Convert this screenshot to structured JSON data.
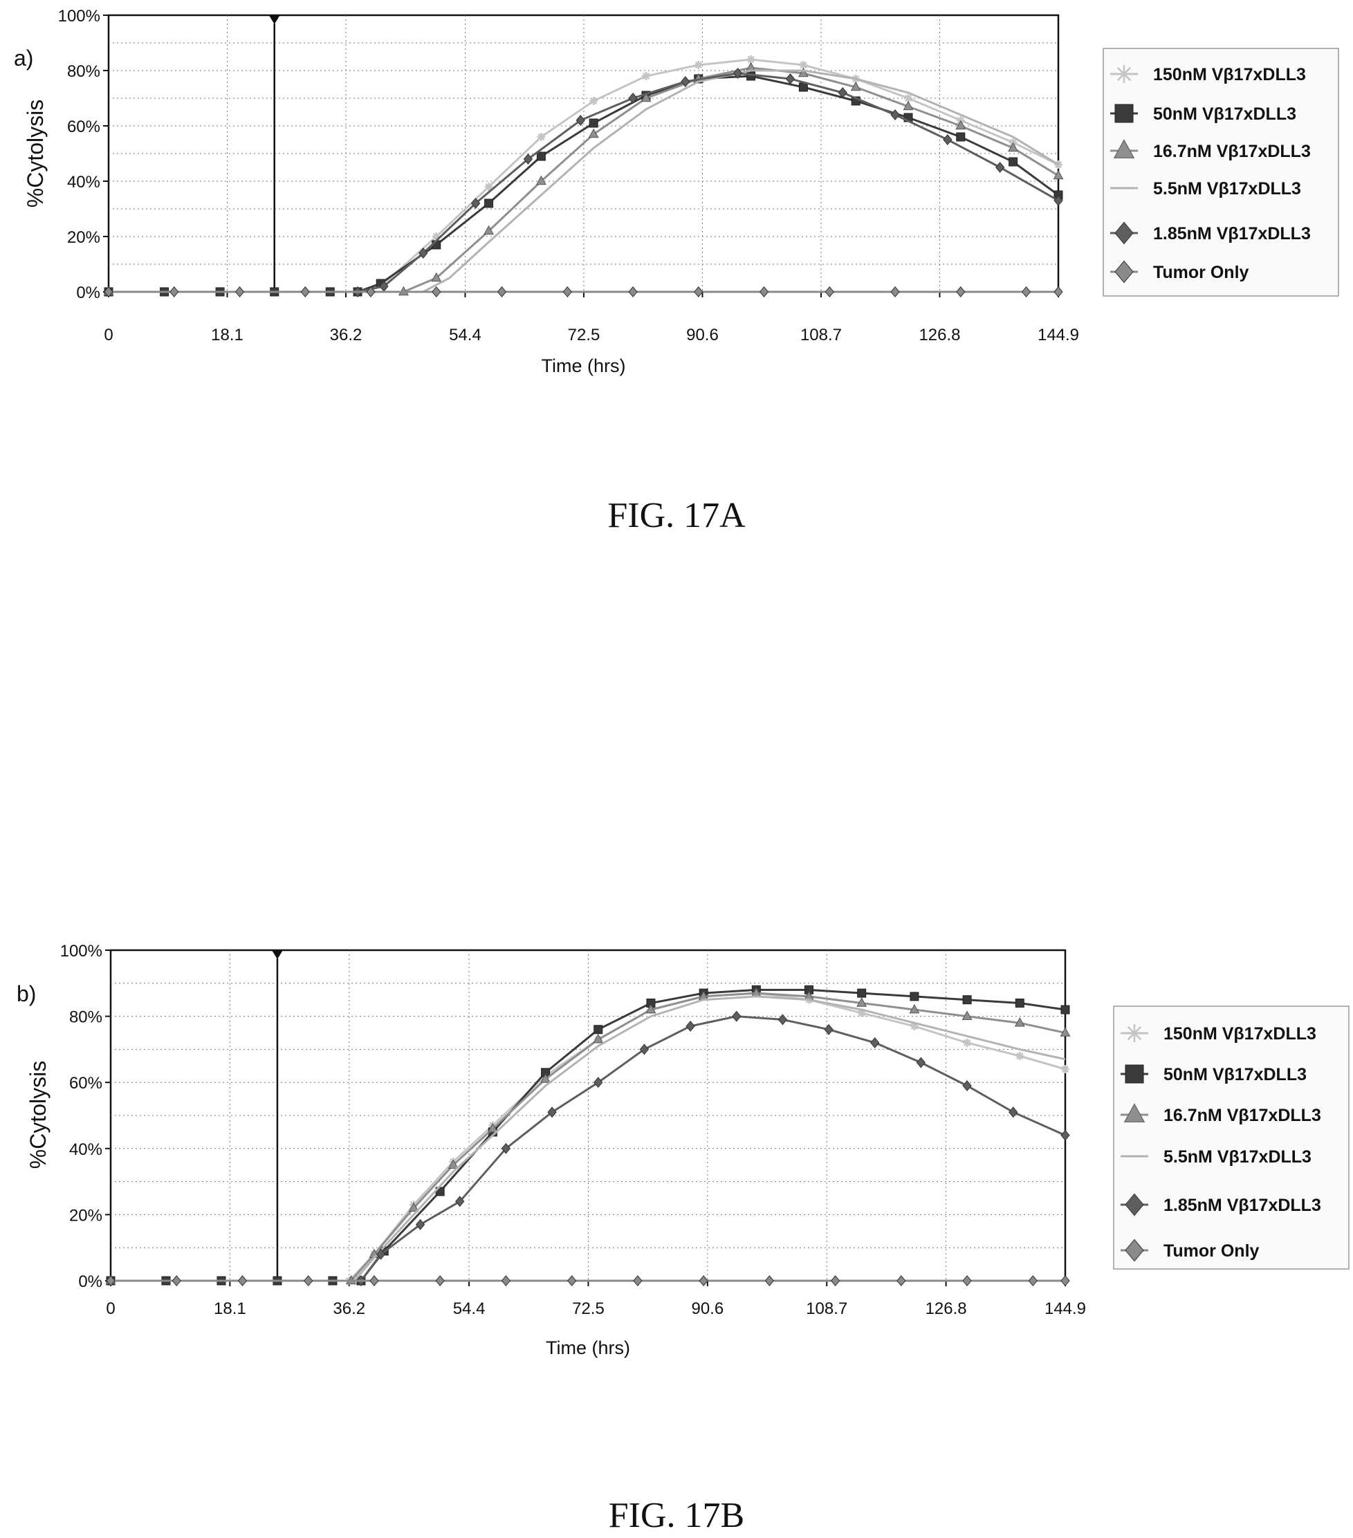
{
  "figures": [
    {
      "label": "FIG. 17A"
    },
    {
      "label": "FIG. 17B"
    }
  ],
  "colors": {
    "150nM": "#c4c4c4",
    "50nM": "#3a3a3a",
    "16.7nM": "#8f8f8f",
    "5.5nM": "#b3b3b3",
    "1.85nM": "#5e5e5e",
    "tumor_only": "#8a8a8a"
  },
  "chart_data": [
    {
      "type": "line",
      "panel_label": "a)",
      "xlabel": "Time (hrs)",
      "ylabel": "%Cytolysis",
      "xlim": [
        0,
        144.9
      ],
      "ylim": [
        0,
        100
      ],
      "x_ticks": [
        "0",
        "18.1",
        "36.2",
        "54.4",
        "72.5",
        "90.6",
        "108.7",
        "126.8",
        "144.9"
      ],
      "y_ticks": [
        "0%",
        "20%",
        "40%",
        "60%",
        "80%",
        "100%"
      ],
      "marker_line_x": 25.3,
      "grid": true,
      "legend_position": "right",
      "series": [
        {
          "name": "150nM Vβ17xDLL3",
          "marker": "asterisk",
          "color_key": "150nM",
          "x": [
            0,
            38,
            42,
            50,
            58,
            66,
            74,
            82,
            90,
            98,
            106,
            114,
            122,
            130,
            138,
            144.9
          ],
          "y": [
            0,
            0,
            3,
            20,
            38,
            56,
            69,
            78,
            82,
            84,
            82,
            77,
            70,
            62,
            54,
            46
          ]
        },
        {
          "name": "50nM Vβ17xDLL3",
          "marker": "square",
          "color_key": "50nM",
          "x": [
            0,
            8.5,
            17,
            25.3,
            33.8,
            38,
            41.5,
            50,
            58,
            66,
            74,
            82,
            90,
            98,
            106,
            114,
            122,
            130,
            138,
            144.9
          ],
          "y": [
            0,
            0,
            0,
            0,
            0,
            0,
            3,
            17,
            32,
            49,
            61,
            71,
            77,
            78,
            74,
            69,
            63,
            56,
            47,
            35
          ]
        },
        {
          "name": "16.7nM Vβ17xDLL3",
          "marker": "triangle",
          "color_key": "16.7nM",
          "x": [
            0,
            45,
            50,
            58,
            66,
            74,
            82,
            90,
            98,
            106,
            114,
            122,
            130,
            138,
            144.9
          ],
          "y": [
            0,
            0,
            5,
            22,
            40,
            57,
            70,
            77,
            81,
            79,
            74,
            67,
            60,
            52,
            42
          ]
        },
        {
          "name": "5.5nM Vβ17xDLL3",
          "marker": "none",
          "color_key": "5.5nM",
          "x": [
            0,
            48,
            52,
            58,
            66,
            74,
            82,
            90,
            98,
            106,
            114,
            122,
            130,
            138,
            144.9
          ],
          "y": [
            0,
            0,
            5,
            18,
            35,
            52,
            66,
            76,
            80,
            80,
            77,
            72,
            64,
            56,
            46
          ]
        },
        {
          "name": "1.85nM Vβ17xDLL3",
          "marker": "diamond",
          "color_key": "1.85nM",
          "x": [
            0,
            38,
            42,
            48,
            56,
            64,
            72,
            80,
            88,
            96,
            104,
            112,
            120,
            128,
            136,
            144.9
          ],
          "y": [
            0,
            0,
            2,
            14,
            32,
            48,
            62,
            70,
            76,
            79,
            77,
            72,
            64,
            55,
            45,
            33
          ]
        },
        {
          "name": "Tumor Only",
          "marker": "diamond",
          "color_key": "tumor_only",
          "x": [
            0,
            10,
            20,
            30,
            40,
            50,
            60,
            70,
            80,
            90,
            100,
            110,
            120,
            130,
            140,
            144.9
          ],
          "y": [
            0,
            0,
            0,
            0,
            0,
            0,
            0,
            0,
            0,
            0,
            0,
            0,
            0,
            0,
            0,
            0
          ]
        }
      ]
    },
    {
      "type": "line",
      "panel_label": "b)",
      "xlabel": "Time (hrs)",
      "ylabel": "%Cytolysis",
      "xlim": [
        0,
        144.9
      ],
      "ylim": [
        0,
        100
      ],
      "x_ticks": [
        "0",
        "18.1",
        "36.2",
        "54.4",
        "72.5",
        "90.6",
        "108.7",
        "126.8",
        "144.9"
      ],
      "y_ticks": [
        "0%",
        "20%",
        "40%",
        "60%",
        "80%",
        "100%"
      ],
      "marker_line_x": 25.3,
      "grid": true,
      "legend_position": "right",
      "series": [
        {
          "name": "150nM Vβ17xDLL3",
          "marker": "asterisk",
          "color_key": "150nM",
          "x": [
            0,
            36.2,
            40,
            46,
            52,
            58,
            66,
            74,
            82,
            90,
            98,
            106,
            114,
            122,
            130,
            138,
            144.9
          ],
          "y": [
            0,
            0,
            8,
            23,
            36,
            47,
            62,
            73,
            82,
            86,
            87,
            85,
            81,
            77,
            72,
            68,
            64
          ]
        },
        {
          "name": "50nM Vβ17xDLL3",
          "marker": "square",
          "color_key": "50nM",
          "x": [
            0,
            8.4,
            16.8,
            25.3,
            33.7,
            38,
            41.5,
            50,
            58,
            66,
            74,
            82,
            90,
            98,
            106,
            114,
            122,
            130,
            138,
            144.9
          ],
          "y": [
            0,
            0,
            0,
            0,
            0,
            0,
            9,
            27,
            45,
            63,
            76,
            84,
            87,
            88,
            88,
            87,
            86,
            85,
            84,
            82
          ]
        },
        {
          "name": "16.7nM Vβ17xDLL3",
          "marker": "triangle",
          "color_key": "16.7nM",
          "x": [
            0,
            36.5,
            40,
            46,
            52,
            58,
            66,
            74,
            82,
            90,
            98,
            106,
            114,
            122,
            130,
            138,
            144.9
          ],
          "y": [
            0,
            0,
            8,
            22,
            35,
            46,
            61,
            73,
            82,
            86,
            87,
            86,
            84,
            82,
            80,
            78,
            75
          ]
        },
        {
          "name": "5.5nM Vβ17xDLL3",
          "marker": "none",
          "color_key": "5.5nM",
          "x": [
            0,
            37,
            40,
            46,
            52,
            58,
            66,
            74,
            82,
            90,
            98,
            106,
            114,
            122,
            130,
            138,
            144.9
          ],
          "y": [
            0,
            0,
            7,
            20,
            33,
            44,
            59,
            71,
            80,
            85,
            86,
            85,
            82,
            78,
            74,
            70,
            67
          ]
        },
        {
          "name": "1.85nM Vβ17xDLL3",
          "marker": "diamond",
          "color_key": "1.85nM",
          "x": [
            0,
            38,
            41,
            47,
            53,
            60,
            67,
            74,
            81,
            88,
            95,
            102,
            109,
            116,
            123,
            130,
            137,
            144.9
          ],
          "y": [
            0,
            0,
            8,
            17,
            24,
            40,
            51,
            60,
            70,
            77,
            80,
            79,
            76,
            72,
            66,
            59,
            51,
            44
          ]
        },
        {
          "name": "Tumor Only",
          "marker": "diamond",
          "color_key": "tumor_only",
          "x": [
            0,
            10,
            20,
            30,
            40,
            50,
            60,
            70,
            80,
            90,
            100,
            110,
            120,
            130,
            140,
            144.9
          ],
          "y": [
            0,
            0,
            0,
            0,
            0,
            0,
            0,
            0,
            0,
            0,
            0,
            0,
            0,
            0,
            0,
            0
          ]
        }
      ]
    }
  ]
}
